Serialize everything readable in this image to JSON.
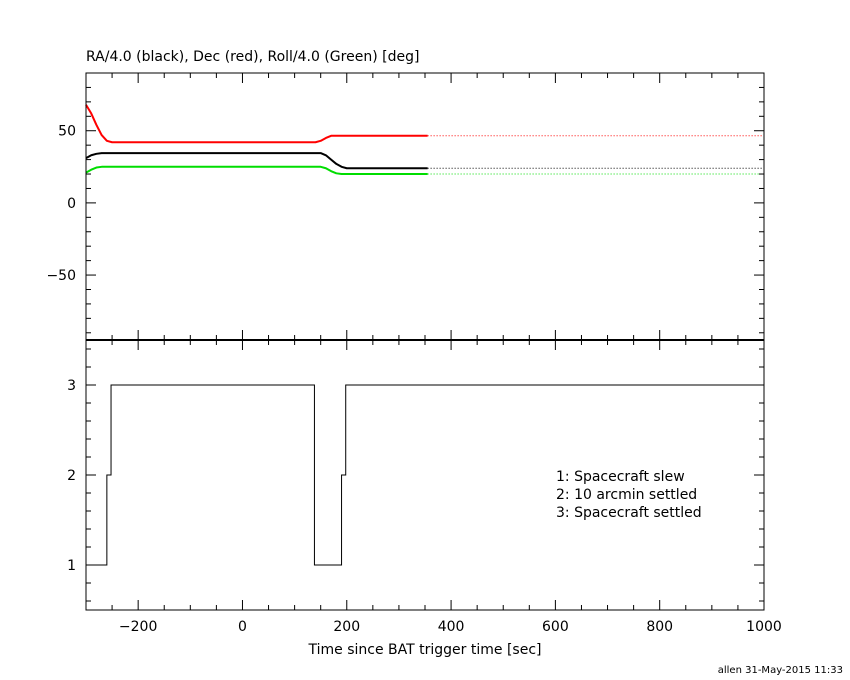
{
  "chart_data": [
    {
      "type": "line",
      "title": "RA/4.0 (black), Dec (red), Roll/4.0 (Green) [deg]",
      "xlim": [
        -300,
        1000
      ],
      "ylim": [
        -95,
        90
      ],
      "x_ticks": [
        -200,
        0,
        200,
        400,
        600,
        800,
        1000
      ],
      "y_ticks": [
        -50,
        0,
        50
      ],
      "series": [
        {
          "color": "#ff0000",
          "x": [
            -300,
            -290,
            -280,
            -270,
            -260,
            -250,
            140,
            150,
            160,
            170,
            355,
            1000
          ],
          "y": [
            68,
            62,
            54,
            47,
            43,
            42,
            42,
            43,
            45,
            46.5,
            46.5,
            46.5
          ],
          "dotted_from": 355
        },
        {
          "color": "#000000",
          "x": [
            -300,
            -290,
            -280,
            -270,
            -250,
            150,
            160,
            170,
            180,
            190,
            200,
            355,
            1000
          ],
          "y": [
            31,
            33,
            34,
            34.5,
            34.5,
            34.5,
            33,
            30,
            27,
            25,
            24,
            24,
            24
          ],
          "dotted_from": 355
        },
        {
          "color": "#00dd00",
          "x": [
            -300,
            -290,
            -280,
            -270,
            -250,
            150,
            160,
            170,
            180,
            190,
            200,
            355,
            1000
          ],
          "y": [
            21,
            23,
            24.5,
            25,
            25,
            25,
            24,
            22,
            20.5,
            20,
            20,
            20,
            20
          ],
          "dotted_from": 355
        }
      ]
    },
    {
      "type": "line",
      "xlabel": "Time since BAT trigger time [sec]",
      "xlim": [
        -300,
        1000
      ],
      "ylim": [
        0.5,
        3.5
      ],
      "x_ticks": [
        -200,
        0,
        200,
        400,
        600,
        800,
        1000
      ],
      "y_ticks": [
        1,
        2,
        3
      ],
      "series": [
        {
          "color": "#000000",
          "step": true,
          "x": [
            -300,
            -260,
            -252,
            138,
            190,
            198,
            1000
          ],
          "y": [
            1,
            2,
            3,
            1,
            2,
            3,
            3
          ]
        }
      ],
      "annotations": [
        "1: Spacecraft slew",
        "2: 10 arcmin settled",
        "3: Spacecraft settled"
      ]
    }
  ],
  "footer": "allen 31-May-2015 11:33"
}
